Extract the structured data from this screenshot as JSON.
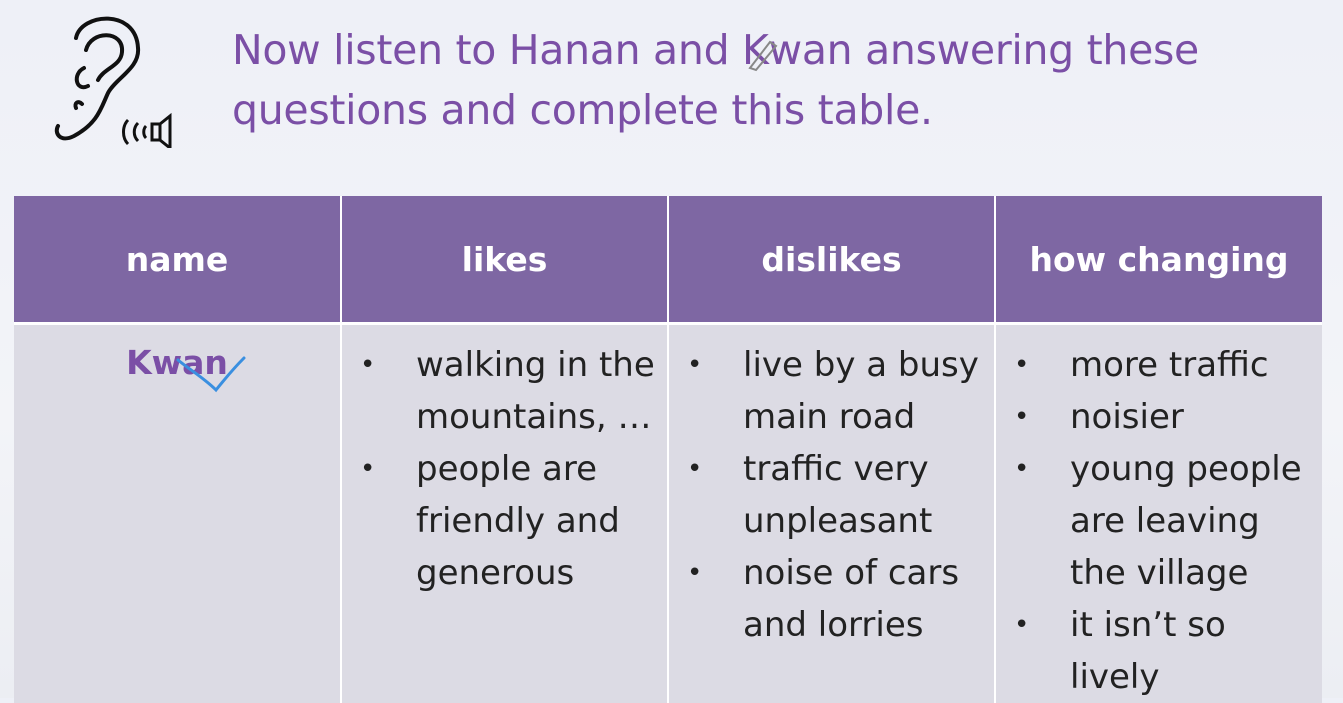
{
  "instruction": {
    "line1": "Now listen to Hanan and Kwan answering these",
    "line2": "questions and complete this table."
  },
  "icons": {
    "ear": "ear-listening-icon",
    "speaker": "speaker-icon"
  },
  "table": {
    "headers": [
      "name",
      "likes",
      "dislikes",
      "how changing"
    ],
    "row": {
      "name": "Kwan",
      "likes": [
        "walking in the mountains, …",
        "people are friendly and generous"
      ],
      "dislikes": [
        "live by a busy main road",
        "traffic very unpleasant",
        "noise of cars and lorries"
      ],
      "how_changing": [
        "more traffic",
        "noisier",
        "young people are leaving the village",
        "it isn’t so lively"
      ]
    }
  },
  "colors": {
    "header_bg": "#7e67a3",
    "cell_bg": "#dcdbe4",
    "accent_text": "#7b4fa6",
    "annotation_blue": "#3a8fe0"
  }
}
